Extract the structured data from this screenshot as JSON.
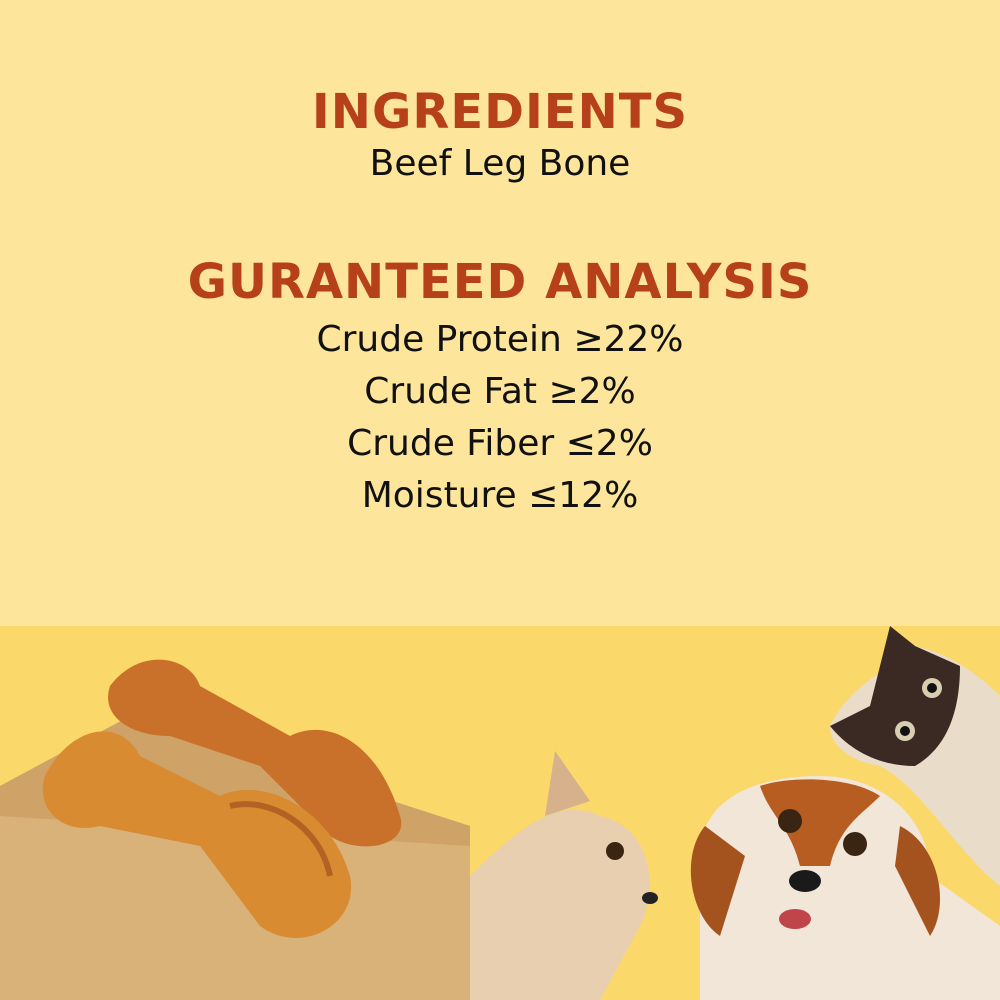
{
  "ingredients": {
    "heading": "INGREDIENTS",
    "text": "Beef Leg Bone"
  },
  "analysis": {
    "heading": "GURANTEED ANALYSIS",
    "items": [
      "Crude Protein ≥22%",
      "Crude Fat ≥2%",
      "Crude Fiber ≤2%",
      "Moisture ≤12%"
    ]
  },
  "colors": {
    "background": "#fde69b",
    "heading": "#b5401a",
    "lower_background": "#fad86a"
  }
}
